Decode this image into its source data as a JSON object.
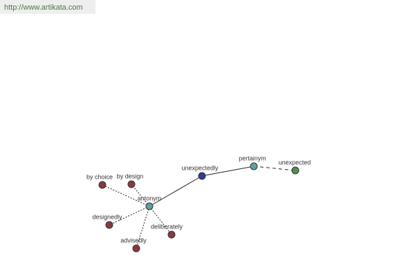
{
  "header": {
    "url": "http://www.artikata.com"
  },
  "nodes": [
    {
      "label": "antonym"
    },
    {
      "label": "unexpectedly"
    },
    {
      "label": "pertainym"
    },
    {
      "label": "unexpected"
    },
    {
      "label": "by choice"
    },
    {
      "label": "by design"
    },
    {
      "label": "designedly"
    },
    {
      "label": "advisedly"
    },
    {
      "label": "deliberately"
    }
  ]
}
